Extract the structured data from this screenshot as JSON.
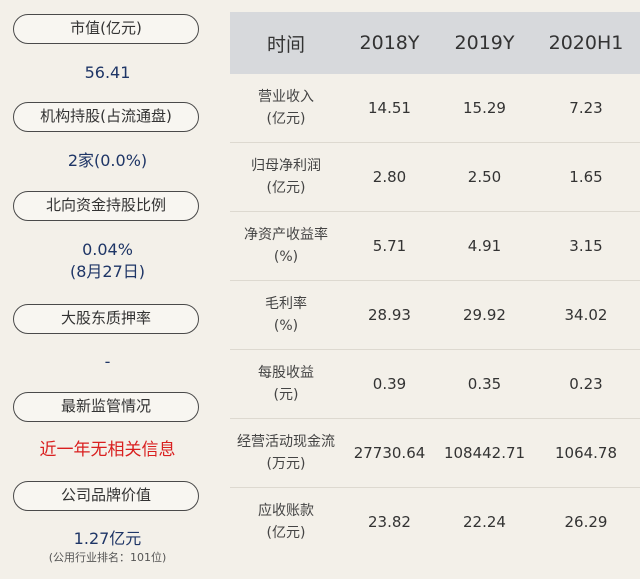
{
  "left_panel": {
    "market_cap": {
      "label": "市值(亿元)",
      "value": "56.41"
    },
    "institutional": {
      "label": "机构持股(占流通盘)",
      "value": "2家(0.0%)"
    },
    "northbound": {
      "label": "北向资金持股比例",
      "value": "0.04%",
      "date": "(8月27日)"
    },
    "pledge": {
      "label": "大股东质押率",
      "value": "-"
    },
    "supervision": {
      "label": "最新监管情况",
      "value": "近一年无相关信息"
    },
    "brand": {
      "label": "公司品牌价值",
      "value": "1.27亿元",
      "rank": "(公用行业排名：101位)"
    }
  },
  "table": {
    "headers": [
      "时间",
      "2018Y",
      "2019Y",
      "2020H1"
    ],
    "rows": [
      {
        "label": [
          "营业收入",
          "(亿元)"
        ],
        "values": [
          "14.51",
          "15.29",
          "7.23"
        ]
      },
      {
        "label": [
          "归母净利润",
          "(亿元)"
        ],
        "values": [
          "2.80",
          "2.50",
          "1.65"
        ]
      },
      {
        "label": [
          "净资产收益率",
          "(%)"
        ],
        "values": [
          "5.71",
          "4.91",
          "3.15"
        ]
      },
      {
        "label": [
          "毛利率",
          "(%)"
        ],
        "values": [
          "28.93",
          "29.92",
          "34.02"
        ]
      },
      {
        "label": [
          "每股收益",
          "(元)"
        ],
        "values": [
          "0.39",
          "0.35",
          "0.23"
        ]
      },
      {
        "label": [
          "经营活动现金流",
          "(万元)"
        ],
        "values": [
          "27730.64",
          "108442.71",
          "1064.78"
        ]
      },
      {
        "label": [
          "应收账款",
          "(亿元)"
        ],
        "values": [
          "23.82",
          "22.24",
          "26.29"
        ]
      }
    ]
  }
}
